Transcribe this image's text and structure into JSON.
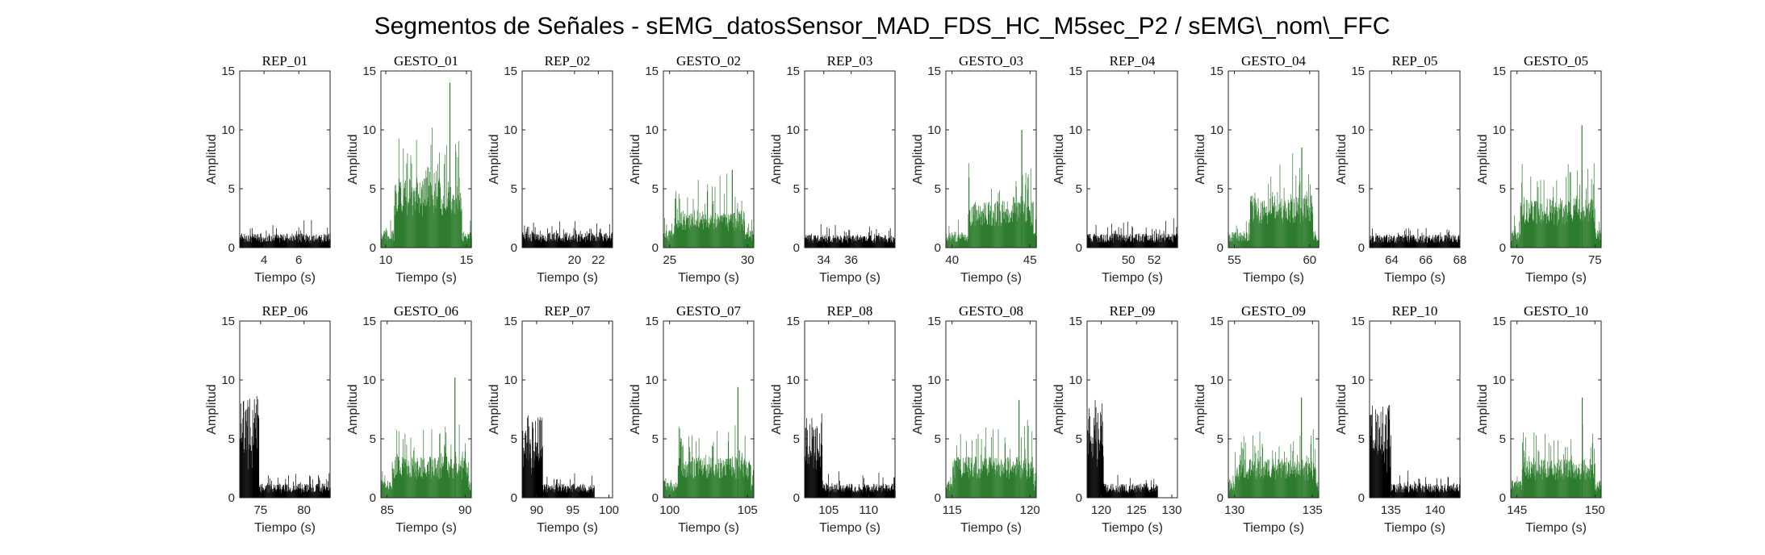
{
  "figure_title": "Segmentos de Señales - sEMG_datosSensor_MAD_FDS_HC_M5sec_P2 / sEMG\\_nom\\_FFC",
  "colors": {
    "rep": "#000000",
    "gesto": "#2e7d2e",
    "axis": "#262626"
  },
  "chart_data": [
    {
      "type": "bar",
      "title": "REP_01",
      "kind": "rep",
      "xlabel": "Tiempo (s)",
      "ylabel": "Amplitud",
      "xlim": [
        2.6,
        7.8
      ],
      "ylim": [
        0,
        15
      ],
      "xticks": [
        4,
        6
      ],
      "yticks": [
        0,
        5,
        10,
        15
      ],
      "signal": {
        "start": 2.6,
        "end": 7.8,
        "base": 1.2,
        "spread": 1.2,
        "burst_until": null,
        "burst": 0
      }
    },
    {
      "type": "bar",
      "title": "GESTO_01",
      "kind": "gesto",
      "xlabel": "Tiempo (s)",
      "ylabel": "Amplitud",
      "xlim": [
        9.7,
        15.3
      ],
      "ylim": [
        0,
        15
      ],
      "xticks": [
        10,
        15
      ],
      "yticks": [
        0,
        5,
        10,
        15
      ],
      "signal": {
        "start": 9.7,
        "end": 15.3,
        "base": 1.5,
        "spread": 1.5,
        "mid_start": 10.5,
        "mid_end": 14.7,
        "mid_level": 6,
        "mid_spread": 5,
        "peak": 14
      }
    },
    {
      "type": "bar",
      "title": "REP_02",
      "kind": "rep",
      "xlabel": "Tiempo (s)",
      "ylabel": "Amplitud",
      "xlim": [
        15.6,
        23.2
      ],
      "ylim": [
        0,
        15
      ],
      "xticks": [
        20,
        22
      ],
      "yticks": [
        0,
        5,
        10,
        15
      ],
      "signal": {
        "start": 15.6,
        "end": 23.2,
        "base": 1.3,
        "spread": 1.2,
        "burst_until": null,
        "burst": 0
      }
    },
    {
      "type": "bar",
      "title": "GESTO_02",
      "kind": "gesto",
      "xlabel": "Tiempo (s)",
      "ylabel": "Amplitud",
      "xlim": [
        24.6,
        30.4
      ],
      "ylim": [
        0,
        15
      ],
      "xticks": [
        25,
        30
      ],
      "yticks": [
        0,
        5,
        10,
        15
      ],
      "signal": {
        "start": 24.6,
        "end": 30.4,
        "base": 1.5,
        "spread": 1.3,
        "mid_start": 25.3,
        "mid_end": 29.8,
        "mid_level": 3.2,
        "mid_spread": 3.3,
        "peak": 6.6
      }
    },
    {
      "type": "bar",
      "title": "REP_03",
      "kind": "rep",
      "xlabel": "Tiempo (s)",
      "ylabel": "Amplitud",
      "xlim": [
        32.6,
        39.2
      ],
      "ylim": [
        0,
        15
      ],
      "xticks": [
        34,
        36
      ],
      "yticks": [
        0,
        5,
        10,
        15
      ],
      "signal": {
        "start": 32.6,
        "end": 39.2,
        "base": 1.1,
        "spread": 1.1,
        "burst_until": null,
        "burst": 0
      }
    },
    {
      "type": "bar",
      "title": "GESTO_03",
      "kind": "gesto",
      "xlabel": "Tiempo (s)",
      "ylabel": "Amplitud",
      "xlim": [
        39.6,
        45.4
      ],
      "ylim": [
        0,
        15
      ],
      "xticks": [
        40,
        45
      ],
      "yticks": [
        0,
        5,
        10,
        15
      ],
      "signal": {
        "start": 39.6,
        "end": 45.4,
        "base": 1.4,
        "spread": 1.4,
        "mid_start": 41.0,
        "mid_end": 45.2,
        "mid_level": 4,
        "mid_spread": 3.8,
        "peak": 10
      }
    },
    {
      "type": "bar",
      "title": "REP_04",
      "kind": "rep",
      "xlabel": "Tiempo (s)",
      "ylabel": "Amplitud",
      "xlim": [
        46.8,
        53.8
      ],
      "ylim": [
        0,
        15
      ],
      "xticks": [
        50,
        52
      ],
      "yticks": [
        0,
        5,
        10,
        15
      ],
      "signal": {
        "start": 46.8,
        "end": 53.8,
        "base": 1.2,
        "spread": 1.3,
        "burst_until": null,
        "burst": 0
      }
    },
    {
      "type": "bar",
      "title": "GESTO_04",
      "kind": "gesto",
      "xlabel": "Tiempo (s)",
      "ylabel": "Amplitud",
      "xlim": [
        54.6,
        60.6
      ],
      "ylim": [
        0,
        15
      ],
      "xticks": [
        55,
        60
      ],
      "yticks": [
        0,
        5,
        10,
        15
      ],
      "signal": {
        "start": 54.6,
        "end": 60.6,
        "base": 1.4,
        "spread": 1.4,
        "mid_start": 56.0,
        "mid_end": 60.2,
        "mid_level": 4.5,
        "mid_spread": 4,
        "peak": 8.5
      }
    },
    {
      "type": "bar",
      "title": "REP_05",
      "kind": "rep",
      "xlabel": "Tiempo (s)",
      "ylabel": "Amplitud",
      "xlim": [
        62.7,
        68.0
      ],
      "ylim": [
        0,
        15
      ],
      "xticks": [
        64,
        66,
        68
      ],
      "yticks": [
        0,
        5,
        10,
        15
      ],
      "signal": {
        "start": 62.7,
        "end": 68.0,
        "base": 1.1,
        "spread": 1.1,
        "burst_until": null,
        "burst": 0
      }
    },
    {
      "type": "bar",
      "title": "GESTO_05",
      "kind": "gesto",
      "xlabel": "Tiempo (s)",
      "ylabel": "Amplitud",
      "xlim": [
        69.6,
        75.4
      ],
      "ylim": [
        0,
        15
      ],
      "xticks": [
        70,
        75
      ],
      "yticks": [
        0,
        5,
        10,
        15
      ],
      "signal": {
        "start": 69.6,
        "end": 75.4,
        "base": 1.5,
        "spread": 1.4,
        "mid_start": 70.2,
        "mid_end": 75.0,
        "mid_level": 4.2,
        "mid_spread": 3.8,
        "peak": 10.4
      }
    },
    {
      "type": "bar",
      "title": "REP_06",
      "kind": "rep",
      "xlabel": "Tiempo (s)",
      "ylabel": "Amplitud",
      "xlim": [
        72.6,
        83.0
      ],
      "ylim": [
        0,
        15
      ],
      "xticks": [
        75,
        80
      ],
      "yticks": [
        0,
        5,
        10,
        15
      ],
      "signal": {
        "start": 72.6,
        "end": 83.0,
        "base": 1.2,
        "spread": 1.2,
        "burst_until": 74.8,
        "burst": 8.7
      }
    },
    {
      "type": "bar",
      "title": "GESTO_06",
      "kind": "gesto",
      "xlabel": "Tiempo (s)",
      "ylabel": "Amplitud",
      "xlim": [
        84.6,
        90.4
      ],
      "ylim": [
        0,
        15
      ],
      "xticks": [
        85,
        90
      ],
      "yticks": [
        0,
        5,
        10,
        15
      ],
      "signal": {
        "start": 84.6,
        "end": 90.4,
        "base": 1.5,
        "spread": 1.4,
        "mid_start": 85.3,
        "mid_end": 90.2,
        "mid_level": 3.5,
        "mid_spread": 3.2,
        "peak": 10.2
      }
    },
    {
      "type": "bar",
      "title": "REP_07",
      "kind": "rep",
      "xlabel": "Tiempo (s)",
      "ylabel": "Amplitud",
      "xlim": [
        88.0,
        100.5
      ],
      "ylim": [
        0,
        15
      ],
      "xticks": [
        90,
        95,
        100
      ],
      "yticks": [
        0,
        5,
        10,
        15
      ],
      "signal": {
        "start": 88.0,
        "end": 98.0,
        "base": 1.2,
        "spread": 1.1,
        "burst_until": 90.8,
        "burst": 7.0
      }
    },
    {
      "type": "bar",
      "title": "GESTO_07",
      "kind": "gesto",
      "xlabel": "Tiempo (s)",
      "ylabel": "Amplitud",
      "xlim": [
        99.6,
        105.4
      ],
      "ylim": [
        0,
        15
      ],
      "xticks": [
        100,
        105
      ],
      "yticks": [
        0,
        5,
        10,
        15
      ],
      "signal": {
        "start": 99.6,
        "end": 105.4,
        "base": 1.5,
        "spread": 1.4,
        "mid_start": 100.5,
        "mid_end": 105.2,
        "mid_level": 3.5,
        "mid_spread": 3.5,
        "peak": 9.4
      }
    },
    {
      "type": "bar",
      "title": "REP_08",
      "kind": "rep",
      "xlabel": "Tiempo (s)",
      "ylabel": "Amplitud",
      "xlim": [
        102.0,
        113.3
      ],
      "ylim": [
        0,
        15
      ],
      "xticks": [
        105,
        110
      ],
      "yticks": [
        0,
        5,
        10,
        15
      ],
      "signal": {
        "start": 102.0,
        "end": 113.3,
        "base": 1.2,
        "spread": 1.2,
        "burst_until": 104.2,
        "burst": 7.4
      }
    },
    {
      "type": "bar",
      "title": "GESTO_08",
      "kind": "gesto",
      "xlabel": "Tiempo (s)",
      "ylabel": "Amplitud",
      "xlim": [
        114.6,
        120.4
      ],
      "ylim": [
        0,
        15
      ],
      "xticks": [
        115,
        120
      ],
      "yticks": [
        0,
        5,
        10,
        15
      ],
      "signal": {
        "start": 114.6,
        "end": 120.4,
        "base": 1.5,
        "spread": 1.3,
        "mid_start": 115.0,
        "mid_end": 120.2,
        "mid_level": 3.5,
        "mid_spread": 3.3,
        "peak": 8.3
      }
    },
    {
      "type": "bar",
      "title": "REP_09",
      "kind": "rep",
      "xlabel": "Tiempo (s)",
      "ylabel": "Amplitud",
      "xlim": [
        118.0,
        130.8
      ],
      "ylim": [
        0,
        15
      ],
      "xticks": [
        120,
        125,
        130
      ],
      "yticks": [
        0,
        5,
        10,
        15
      ],
      "signal": {
        "start": 118.0,
        "end": 128.0,
        "base": 1.2,
        "spread": 1.0,
        "burst_until": 120.3,
        "burst": 8.4
      }
    },
    {
      "type": "bar",
      "title": "GESTO_09",
      "kind": "gesto",
      "xlabel": "Tiempo (s)",
      "ylabel": "Amplitud",
      "xlim": [
        129.6,
        135.4
      ],
      "ylim": [
        0,
        15
      ],
      "xticks": [
        130,
        135
      ],
      "yticks": [
        0,
        5,
        10,
        15
      ],
      "signal": {
        "start": 129.6,
        "end": 135.4,
        "base": 1.5,
        "spread": 1.3,
        "mid_start": 130.0,
        "mid_end": 135.2,
        "mid_level": 3.3,
        "mid_spread": 3.2,
        "peak": 8.5
      }
    },
    {
      "type": "bar",
      "title": "REP_10",
      "kind": "rep",
      "xlabel": "Tiempo (s)",
      "ylabel": "Amplitud",
      "xlim": [
        132.6,
        142.8
      ],
      "ylim": [
        0,
        15
      ],
      "xticks": [
        135,
        140
      ],
      "yticks": [
        0,
        5,
        10,
        15
      ],
      "signal": {
        "start": 132.6,
        "end": 142.8,
        "base": 1.2,
        "spread": 1.2,
        "burst_until": 135.0,
        "burst": 7.9
      }
    },
    {
      "type": "bar",
      "title": "GESTO_10",
      "kind": "gesto",
      "xlabel": "Tiempo (s)",
      "ylabel": "Amplitud",
      "xlim": [
        144.6,
        150.4
      ],
      "ylim": [
        0,
        15
      ],
      "xticks": [
        145,
        150
      ],
      "yticks": [
        0,
        5,
        10,
        15
      ],
      "signal": {
        "start": 144.6,
        "end": 150.4,
        "base": 1.5,
        "spread": 1.3,
        "mid_start": 145.3,
        "mid_end": 150.0,
        "mid_level": 3.3,
        "mid_spread": 3.2,
        "peak": 8.5
      }
    }
  ]
}
